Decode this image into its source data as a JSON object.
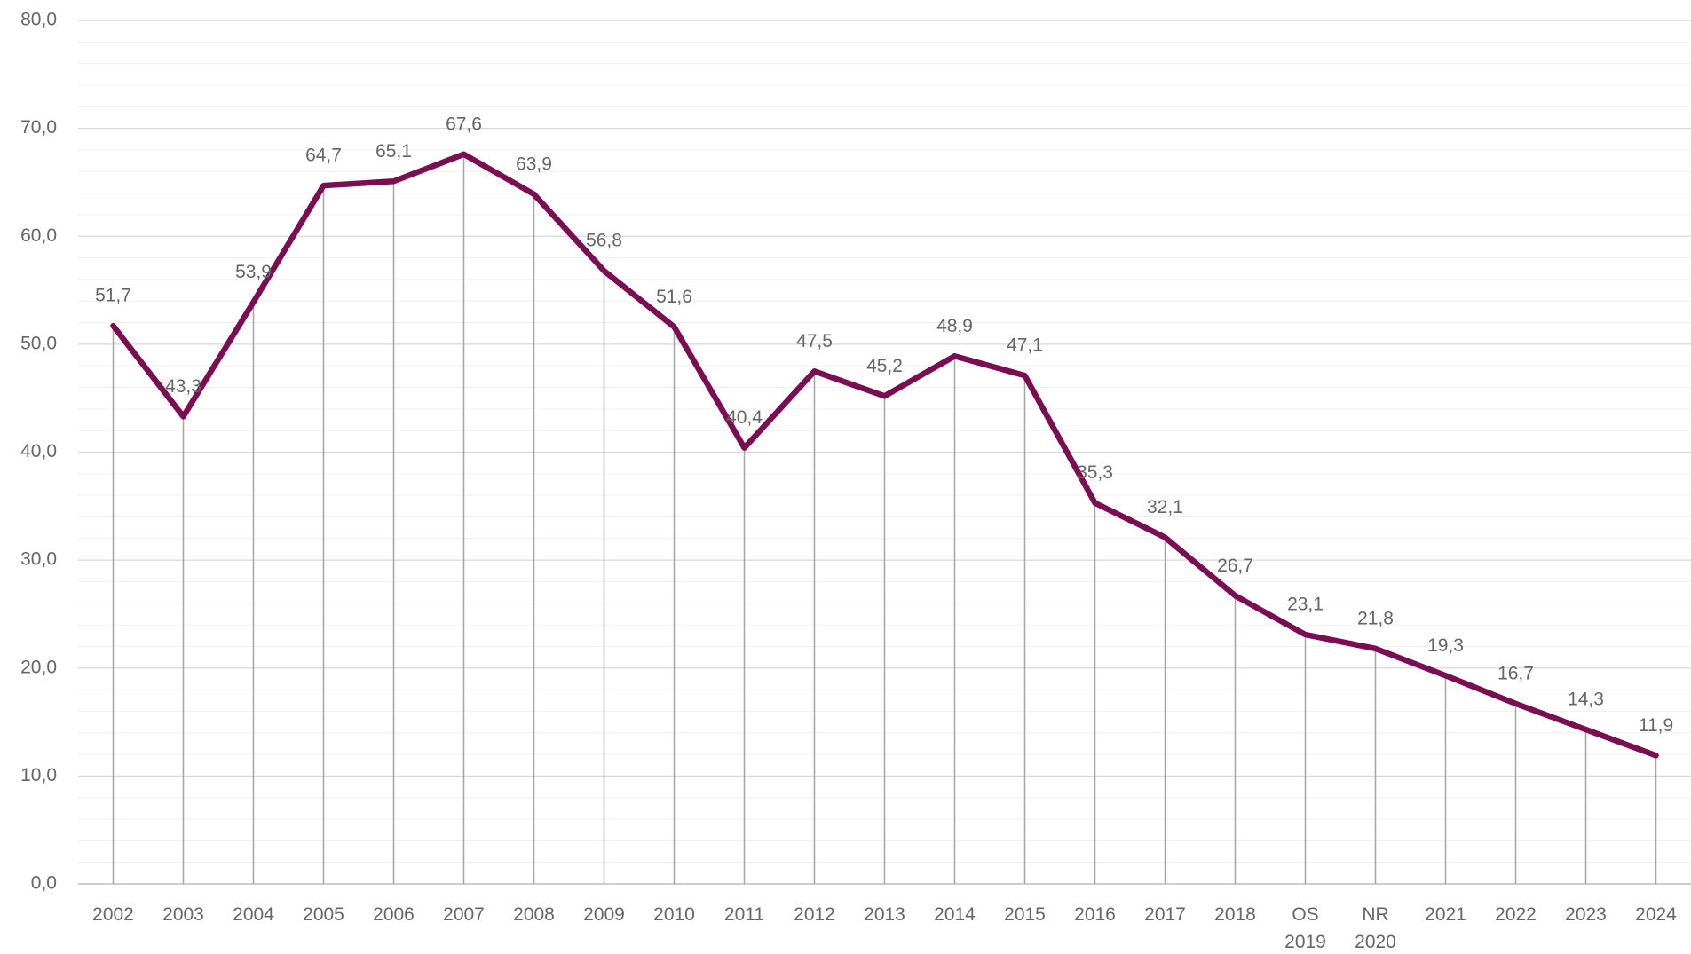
{
  "chart_data": {
    "type": "line",
    "categories": [
      "2002",
      "2003",
      "2004",
      "2005",
      "2006",
      "2007",
      "2008",
      "2009",
      "2010",
      "2011",
      "2012",
      "2013",
      "2014",
      "2015",
      "2016",
      "2017",
      "2018",
      "OS\n2019",
      "NR\n2020",
      "2021",
      "2022",
      "2023",
      "2024"
    ],
    "series": [
      {
        "color": "#7b0d52",
        "values": [
          51.7,
          43.3,
          53.9,
          64.7,
          65.1,
          67.6,
          63.9,
          56.8,
          51.6,
          40.4,
          47.5,
          45.2,
          48.9,
          47.1,
          35.3,
          32.1,
          26.7,
          23.1,
          21.8,
          19.3,
          16.7,
          14.3,
          11.9
        ],
        "value_labels": [
          "51,7",
          "43,3",
          "53,9",
          "64,7",
          "65,1",
          "67,6",
          "63,9",
          "56,8",
          "51,6",
          "40,4",
          "47,5",
          "45,2",
          "48,9",
          "47,1",
          "35,3",
          "32,1",
          "26,7",
          "23,1",
          "21,8",
          "19,3",
          "16,7",
          "14,3",
          "11,9"
        ]
      }
    ],
    "ylim": [
      0,
      80
    ],
    "yticks": [
      {
        "value": 0,
        "label": "0,0"
      },
      {
        "value": 10,
        "label": "10,0"
      },
      {
        "value": 20,
        "label": "20,0"
      },
      {
        "value": 30,
        "label": "30,0"
      },
      {
        "value": 40,
        "label": "40,0"
      },
      {
        "value": 50,
        "label": "50,0"
      },
      {
        "value": 60,
        "label": "60,0"
      },
      {
        "value": 70,
        "label": "70,0"
      },
      {
        "value": 80,
        "label": "80,0"
      }
    ],
    "grid": true,
    "drop_lines": true
  }
}
